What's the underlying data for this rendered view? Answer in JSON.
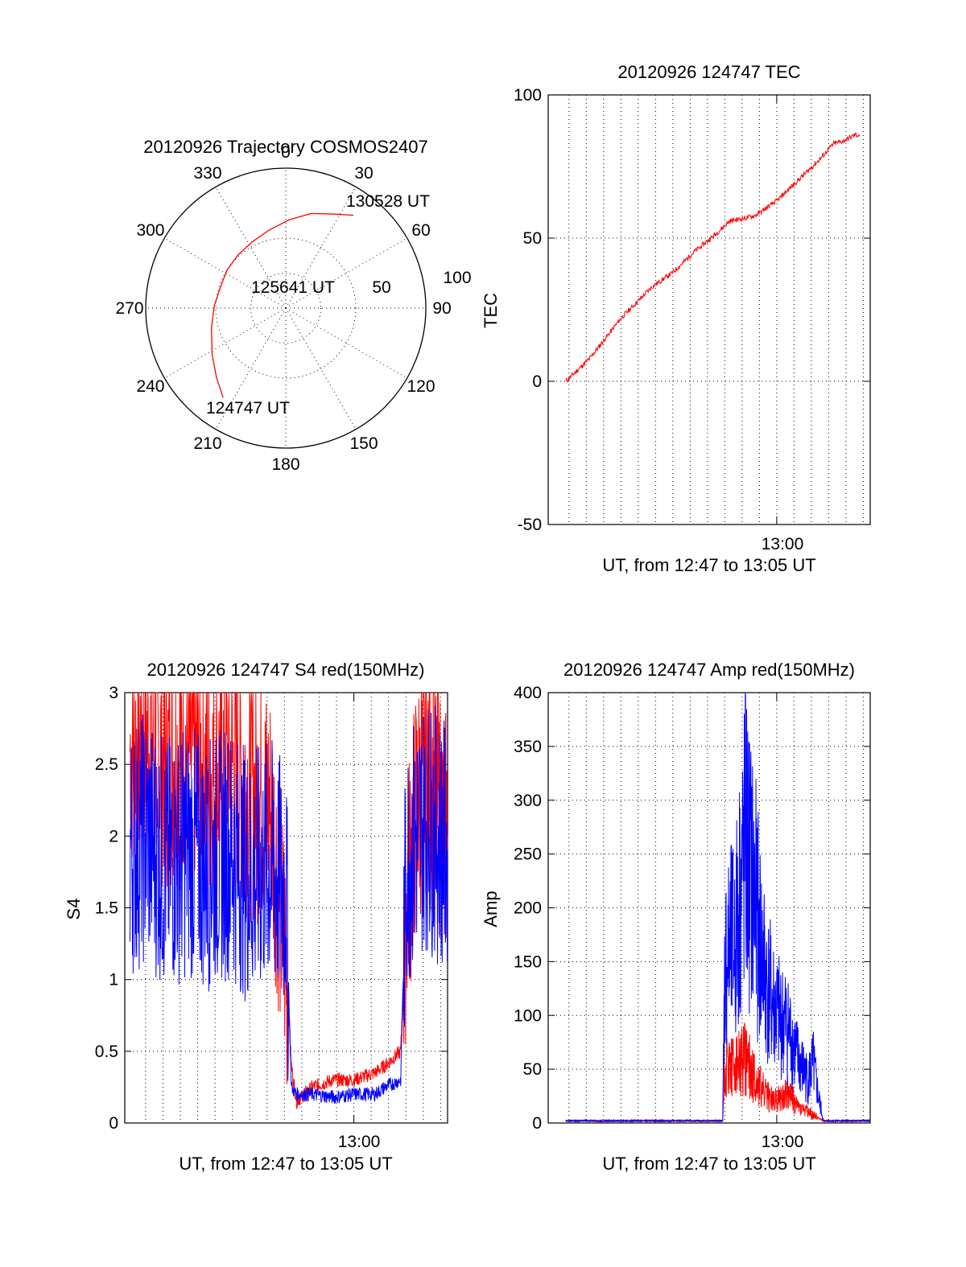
{
  "colors": {
    "red_series": "#ff0000",
    "blue_series": "#0000ff",
    "axes": "#000000",
    "background": "#ffffff"
  },
  "chart_data": [
    {
      "type": "polar",
      "title": "20120926 Trajectory COSMOS2407",
      "angle_labels": [
        "0",
        "30",
        "60",
        "90",
        "120",
        "150",
        "180",
        "210",
        "240",
        "270",
        "300",
        "330"
      ],
      "radius_labels": [
        "50",
        "100"
      ],
      "radius_range": [
        0,
        100
      ],
      "grid": true,
      "series": [
        {
          "color": "#ff0000",
          "azimuth": [
            215,
            225,
            238,
            255,
            272,
            288,
            303,
            318,
            333,
            348,
            2,
            15,
            28,
            36
          ],
          "radius": [
            78,
            70,
            62,
            55,
            51,
            49,
            50,
            51,
            53,
            57,
            63,
            70,
            76,
            82
          ]
        }
      ],
      "annotations": [
        {
          "text": "130528 UT",
          "at": "trajectory end"
        },
        {
          "text": "125641 UT",
          "at": "trajectory middle"
        },
        {
          "text": "124747 UT",
          "at": "trajectory start"
        }
      ]
    },
    {
      "type": "line",
      "title": "20120926 124747 TEC",
      "ylabel": "TEC",
      "xlabel": "UT, from 12:47 to 13:05 UT",
      "xtick_labels": [
        "13:00"
      ],
      "xlim": [
        12.78,
        13.09
      ],
      "ylim": [
        -50,
        100
      ],
      "ytick_labels": [
        "-50",
        "0",
        "50",
        "100"
      ],
      "grid": true,
      "series": [
        {
          "color": "#ff0000",
          "x": [
            12.797,
            12.82,
            12.85,
            12.88,
            12.9,
            12.92,
            12.94,
            12.955,
            12.97,
            12.98,
            13.0,
            13.02,
            13.04,
            13.055,
            13.065,
            13.075,
            13.08
          ],
          "y": [
            0,
            8,
            22,
            33,
            38,
            45,
            51,
            56,
            57,
            58,
            63,
            70,
            77,
            83,
            84,
            86,
            86
          ]
        }
      ]
    },
    {
      "type": "line",
      "title": "20120926 124747 S4 red(150MHz)",
      "ylabel": "S4",
      "xlabel": "UT, from 12:47 to 13:05 UT",
      "xtick_labels": [
        "13:00"
      ],
      "xlim": [
        12.78,
        13.09
      ],
      "ylim": [
        0,
        3
      ],
      "ytick_labels": [
        "0",
        "0.5",
        "1",
        "1.5",
        "2",
        "2.5",
        "3"
      ],
      "grid": true,
      "series": [
        {
          "color": "#ff0000",
          "x": [
            12.785,
            12.8,
            12.82,
            12.84,
            12.86,
            12.88,
            12.9,
            12.92,
            12.935,
            12.94,
            12.945,
            12.96,
            12.98,
            13.0,
            13.02,
            13.03,
            13.045,
            13.05,
            13.06,
            13.07,
            13.08,
            13.09
          ],
          "y": [
            2.6,
            2.7,
            2.5,
            2.6,
            2.4,
            2.5,
            2.3,
            2.2,
            1.1,
            0.4,
            0.15,
            0.25,
            0.3,
            0.3,
            0.35,
            0.4,
            0.5,
            1.5,
            2.2,
            2.5,
            2.2,
            2.0
          ]
        },
        {
          "color": "#0000ff",
          "x": [
            12.785,
            12.8,
            12.82,
            12.84,
            12.86,
            12.88,
            12.9,
            12.92,
            12.935,
            12.94,
            12.945,
            12.96,
            12.98,
            13.0,
            13.02,
            13.03,
            13.045,
            13.05,
            13.06,
            13.07,
            13.08,
            13.09
          ],
          "y": [
            1.9,
            2.0,
            1.8,
            1.9,
            1.8,
            1.9,
            1.7,
            1.8,
            1.6,
            0.25,
            0.2,
            0.2,
            0.18,
            0.2,
            0.2,
            0.25,
            0.3,
            1.8,
            2.0,
            2.1,
            2.0,
            1.9
          ]
        }
      ]
    },
    {
      "type": "line",
      "title": "20120926 124747 Amp red(150MHz)",
      "ylabel": "Amp",
      "xlabel": "UT, from 12:47 to 13:05 UT",
      "xtick_labels": [
        "13:00"
      ],
      "xlim": [
        12.78,
        13.09
      ],
      "ylim": [
        0,
        400
      ],
      "ytick_labels": [
        "0",
        "50",
        "100",
        "150",
        "200",
        "250",
        "300",
        "350",
        "400"
      ],
      "grid": true,
      "series": [
        {
          "color": "#ff0000",
          "x": [
            12.797,
            12.9,
            12.948,
            12.95,
            12.96,
            12.97,
            12.98,
            12.99,
            13.0,
            13.01,
            13.02,
            13.03,
            13.04,
            13.045,
            13.09
          ],
          "y": [
            2,
            2,
            2,
            55,
            50,
            60,
            40,
            25,
            20,
            30,
            15,
            10,
            5,
            2,
            2
          ]
        },
        {
          "color": "#0000ff",
          "x": [
            12.797,
            12.9,
            12.948,
            12.95,
            12.96,
            12.97,
            12.98,
            12.985,
            12.99,
            13.0,
            13.01,
            13.02,
            13.03,
            13.035,
            13.04,
            13.045,
            13.09
          ],
          "y": [
            2,
            2,
            2,
            150,
            170,
            260,
            200,
            160,
            130,
            100,
            90,
            60,
            40,
            55,
            25,
            2,
            2
          ]
        }
      ]
    }
  ]
}
